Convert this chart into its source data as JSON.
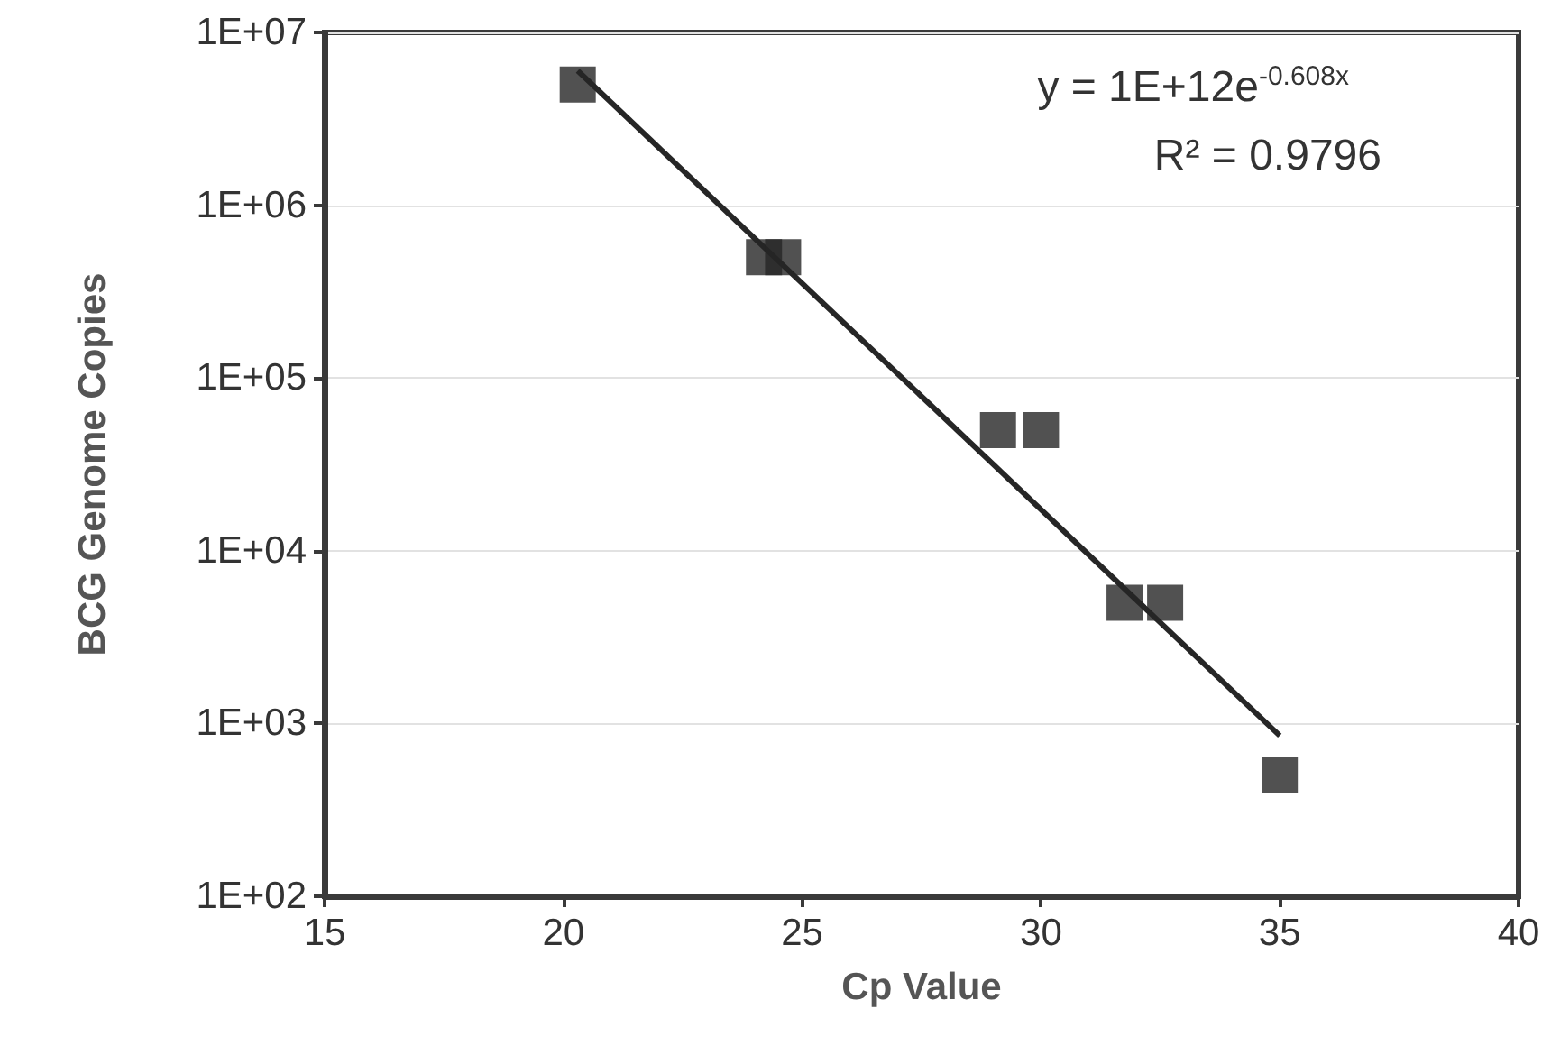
{
  "chart_data": {
    "type": "scatter",
    "xlabel": "Cp Value",
    "ylabel": "BCG Genome Copies",
    "series": [
      {
        "color": "#262626",
        "marker": "square",
        "x": [
          20.3,
          24.2,
          24.6,
          29.1,
          30.0,
          31.75,
          32.6,
          35.0
        ],
        "values": [
          5000000,
          500000,
          500000,
          50000,
          50000,
          5000,
          5000,
          500
        ]
      },
      {
        "type": "line",
        "color": "#262626",
        "marker": "none",
        "x": [
          20.3,
          35.0
        ],
        "values": [
          6000000,
          850
        ]
      }
    ],
    "annotations": [
      "y = 1E+12e$^{-0.608x}$",
      "R² = 0.9796"
    ],
    "xlim": [
      15,
      40
    ],
    "xticks": [
      15,
      20,
      25,
      30,
      35,
      40
    ],
    "ylim": [
      100,
      10000000
    ],
    "yticks": [
      {
        "value": 100,
        "label": "1E+02"
      },
      {
        "value": 1000,
        "label": "1E+03"
      },
      {
        "value": 10000,
        "label": "1E+04"
      },
      {
        "value": 100000,
        "label": "1E+05"
      },
      {
        "value": 1000000,
        "label": "1E+06"
      },
      {
        "value": 10000000,
        "label": "1E+07"
      }
    ],
    "log": "y",
    "grid": "y"
  }
}
